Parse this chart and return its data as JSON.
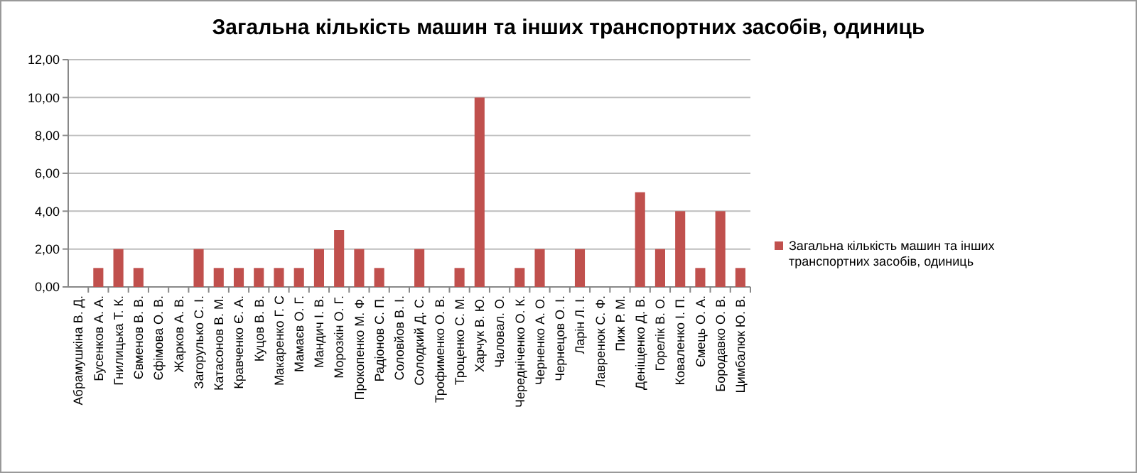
{
  "chart_data": {
    "type": "bar",
    "title": "Загальна кількість машин та інших транспортних засобів, одиниць",
    "categories": [
      "Абрамушкіна В. Д.",
      "Бусенков А. А.",
      "Гнилицька Т. К.",
      "Євменов В. В.",
      "Єфімова О. В.",
      "Жарков А. В.",
      "Загорулько С. І.",
      "Катасонов В. М.",
      "Кравченко Є. А.",
      "Куцов В. В.",
      "Макаренко Г. С",
      "Мамаєв О. Г.",
      "Мандич І. В.",
      "Морозкін О. Г.",
      "Прокопенко М. Ф.",
      "Радіонов С. П.",
      "Соловйов В. І.",
      "Солодкий Д. С.",
      "Трофименко О. В.",
      "Троценко С. М.",
      "Харчук В. Ю.",
      "Чаловал. О.",
      "Чередніченко О. К.",
      "Черненко А. О.",
      "Чернецов О. І.",
      "Ларін Л. І.",
      "Лавренюк С. Ф.",
      "Пиж Р. М.",
      "Деніщенко Д. В.",
      "Горелік В. О.",
      "Коваленко І. П.",
      "Ємець О. А.",
      "Бородавко О. В.",
      "Цимбалюк Ю. В."
    ],
    "series": [
      {
        "name": "Загальна кількість машин та інших транспортних засобів, одиниць",
        "color": "#c0504d",
        "values": [
          0,
          1,
          2,
          1,
          0,
          0,
          2,
          1,
          1,
          1,
          1,
          1,
          2,
          3,
          2,
          1,
          0,
          2,
          0,
          1,
          10,
          0,
          1,
          2,
          0,
          2,
          0,
          0,
          5,
          2,
          4,
          1,
          4,
          1
        ]
      }
    ],
    "ylim": [
      0,
      12
    ],
    "yticks": [
      {
        "value": 0,
        "label": "0,00"
      },
      {
        "value": 2,
        "label": "2,00"
      },
      {
        "value": 4,
        "label": "4,00"
      },
      {
        "value": 6,
        "label": "6,00"
      },
      {
        "value": 8,
        "label": "8,00"
      },
      {
        "value": 10,
        "label": "10,00"
      },
      {
        "value": 12,
        "label": "12,00"
      }
    ],
    "grid": "y",
    "legend": "right"
  }
}
